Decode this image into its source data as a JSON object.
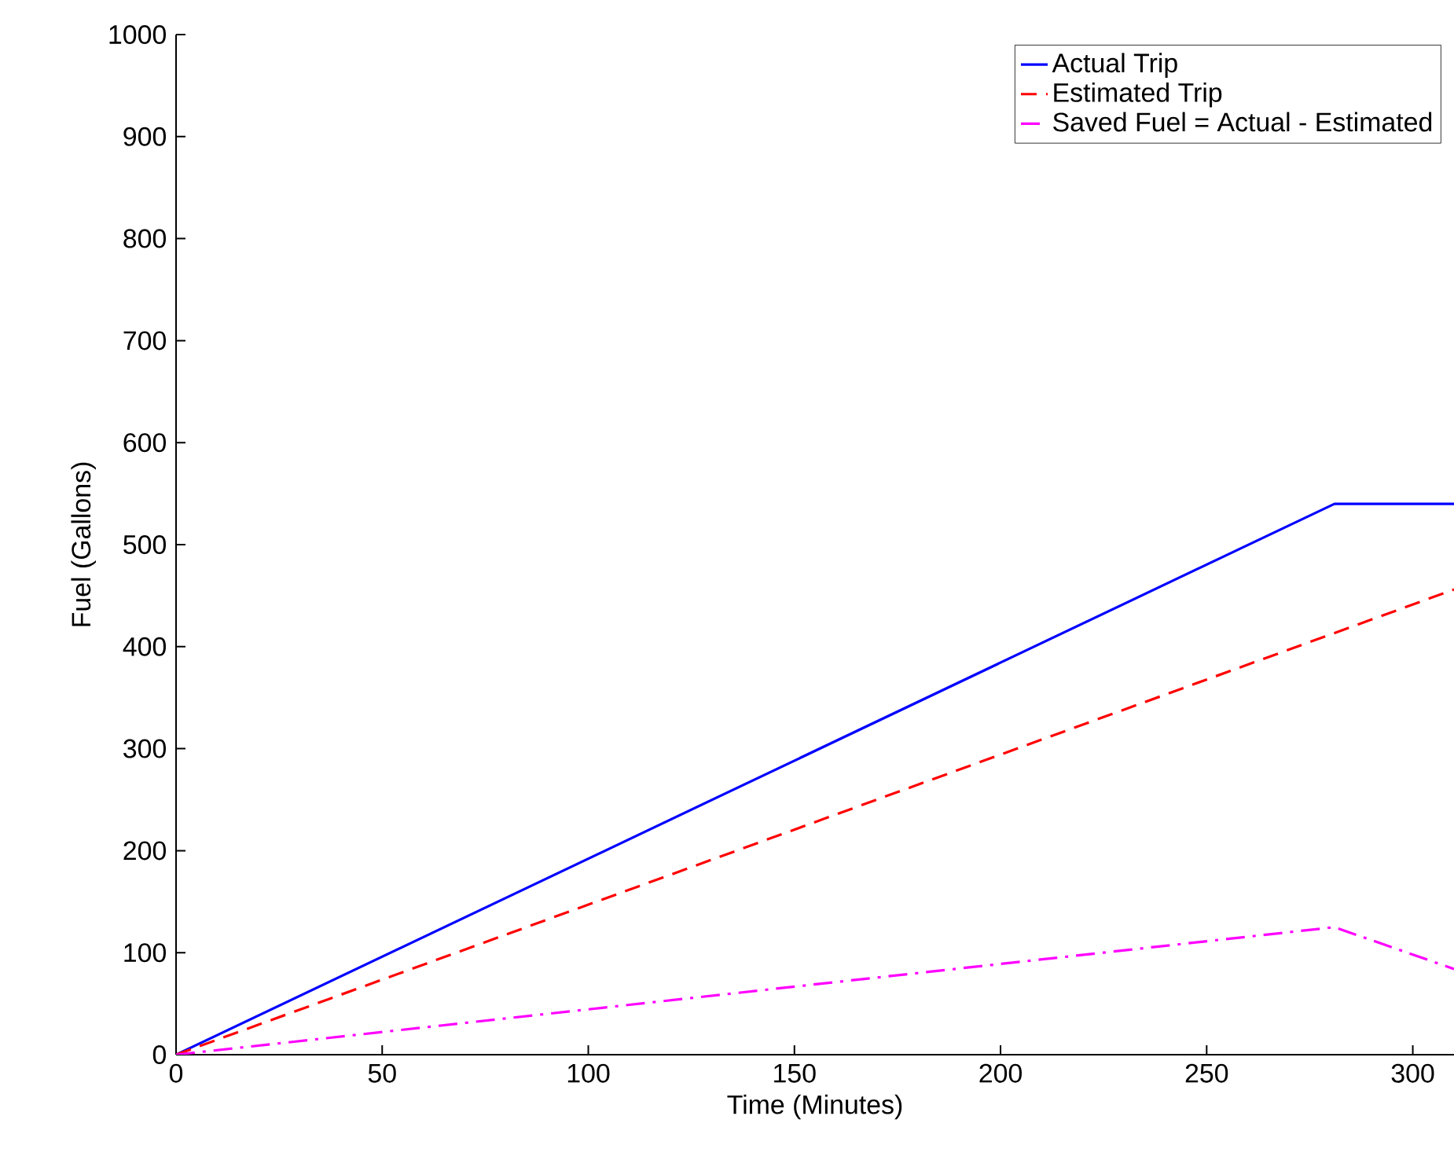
{
  "chart_data": {
    "type": "line",
    "xlabel": "Time (Minutes)",
    "ylabel": "Fuel (Gallons)",
    "xlim": [
      0,
      310
    ],
    "ylim": [
      0,
      1000
    ],
    "xticks": [
      0,
      50,
      100,
      150,
      200,
      250,
      300
    ],
    "yticks": [
      0,
      100,
      200,
      300,
      400,
      500,
      600,
      700,
      800,
      900,
      1000
    ],
    "grid": false,
    "legend": "top right",
    "marker": "none",
    "series": [
      {
        "name": "Actual Trip",
        "color": "#0000ff",
        "line_style": "solid",
        "x": [
          0,
          281,
          310
        ],
        "values": [
          0,
          540,
          540
        ]
      },
      {
        "name": "Estimated Trip",
        "color": "#ff0000",
        "line_style": "dashed",
        "x": [
          0,
          310
        ],
        "values": [
          0,
          456
        ]
      },
      {
        "name": "Saved Fuel = Actual - Estimated",
        "color": "#ff00ff",
        "line_style": "dashdot",
        "x": [
          0,
          281,
          310
        ],
        "values": [
          0,
          125,
          84
        ]
      }
    ]
  }
}
